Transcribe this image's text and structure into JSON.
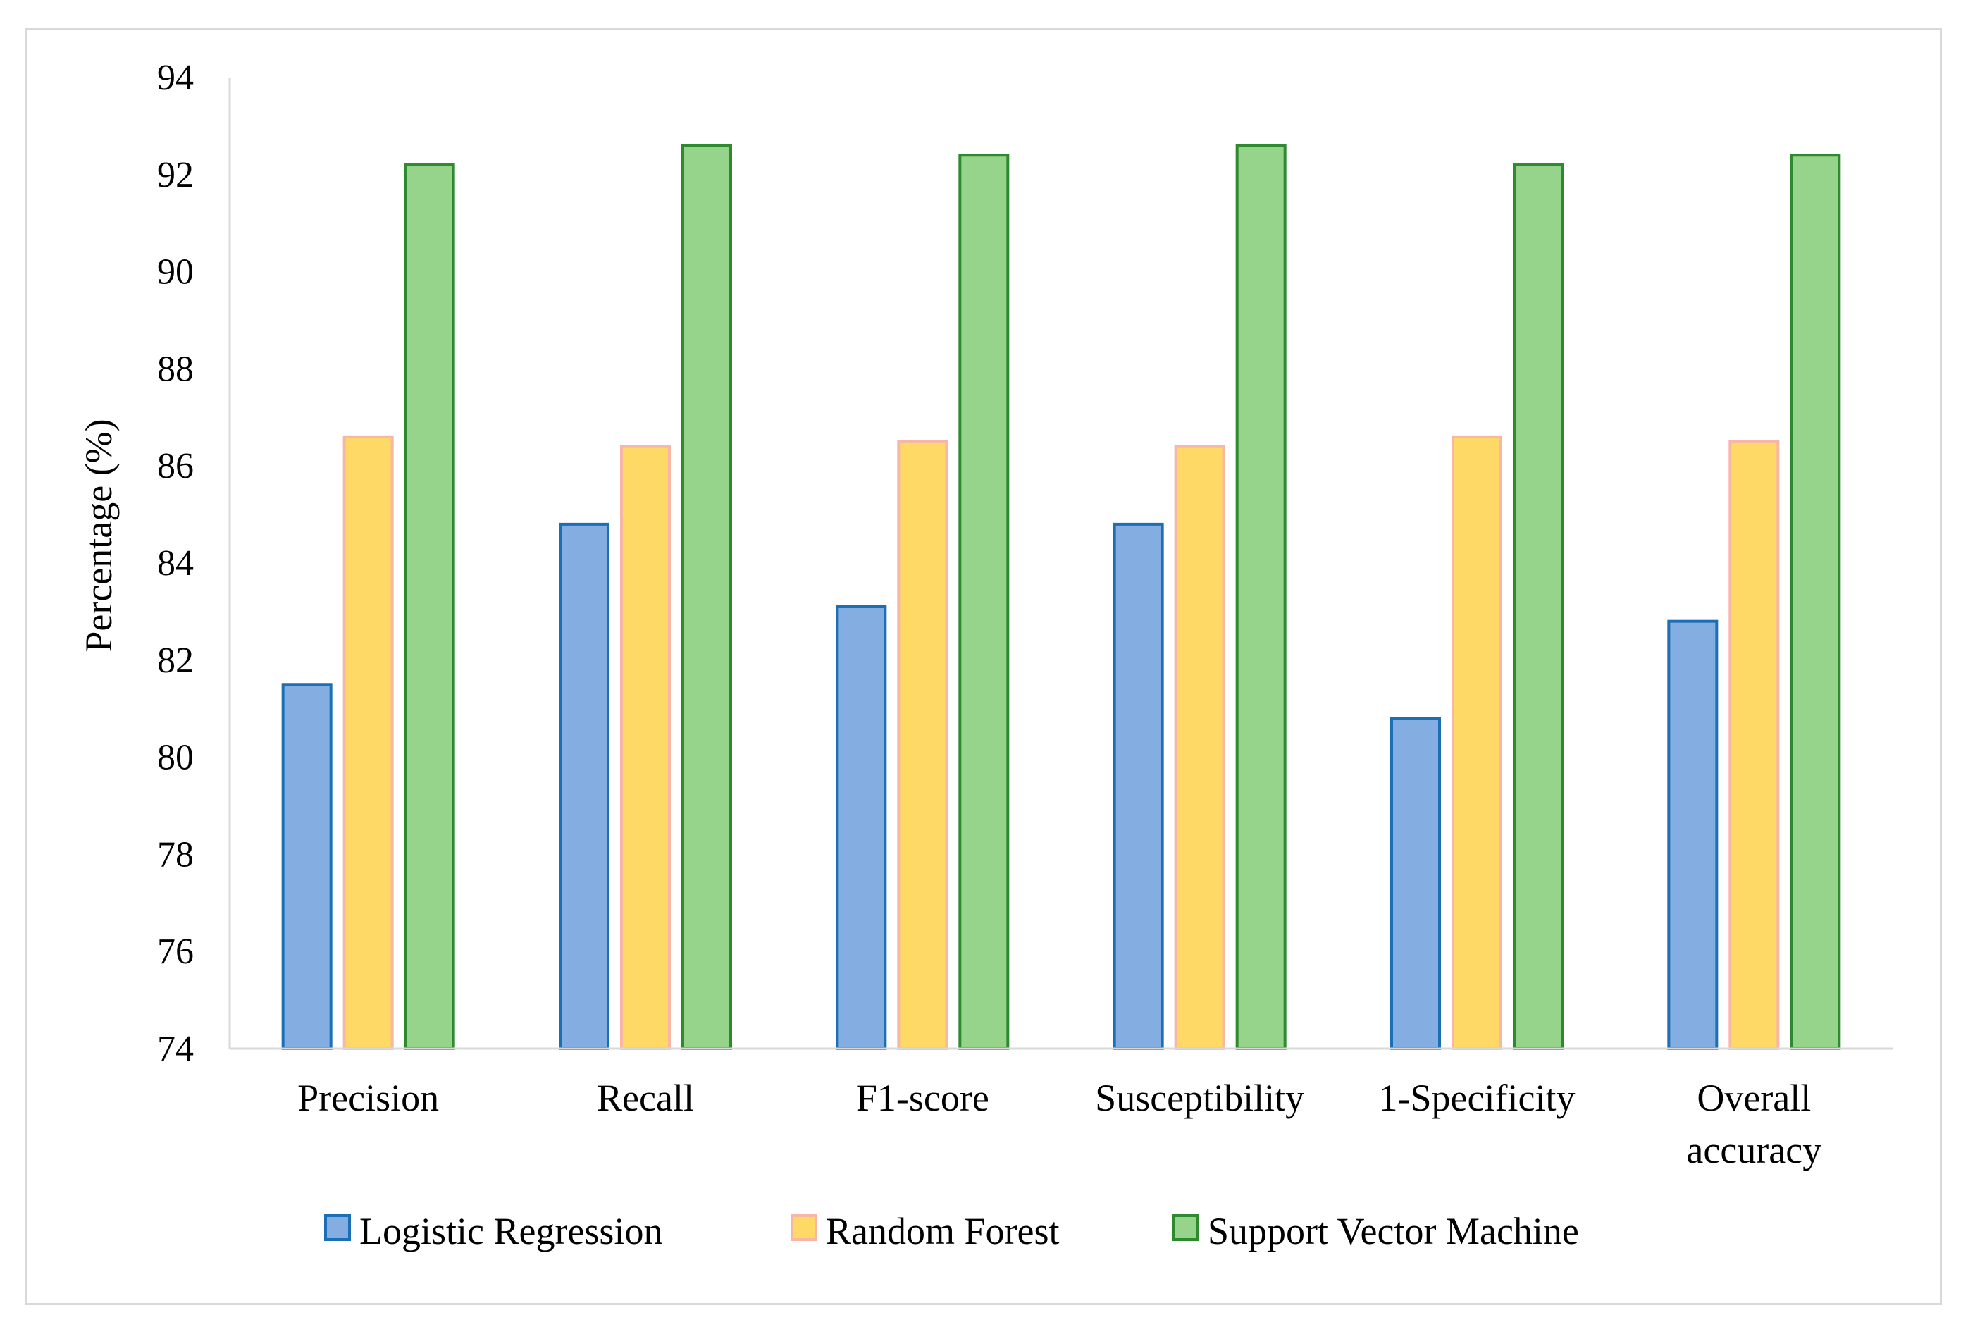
{
  "chart_data": {
    "type": "bar",
    "title": "",
    "xlabel": "",
    "ylabel": "Percentage (%)",
    "ylim": [
      74,
      94
    ],
    "yticks": [
      "74",
      "76",
      "78",
      "80",
      "82",
      "84",
      "86",
      "88",
      "90",
      "92",
      "94"
    ],
    "grid": false,
    "legend_position": "bottom",
    "categories": [
      [
        "Precision"
      ],
      [
        "Recall"
      ],
      [
        "F1-score"
      ],
      [
        "Susceptibility"
      ],
      [
        "1-Specificity"
      ],
      [
        "Overall",
        "accuracy"
      ]
    ],
    "series": [
      {
        "name": "Logistic Regression",
        "fill": "#84aee2",
        "stroke": "#1c6fb5",
        "values": [
          81.5,
          84.8,
          83.1,
          84.8,
          80.8,
          82.8
        ]
      },
      {
        "name": "Random Forest",
        "fill": "#ffd966",
        "stroke": "#f8b6a6",
        "values": [
          86.6,
          86.4,
          86.5,
          86.4,
          86.6,
          86.5
        ]
      },
      {
        "name": "Support Vector Machine",
        "fill": "#97d48b",
        "stroke": "#2f8a2f",
        "values": [
          92.2,
          92.6,
          92.4,
          92.6,
          92.2,
          92.4
        ]
      }
    ]
  }
}
